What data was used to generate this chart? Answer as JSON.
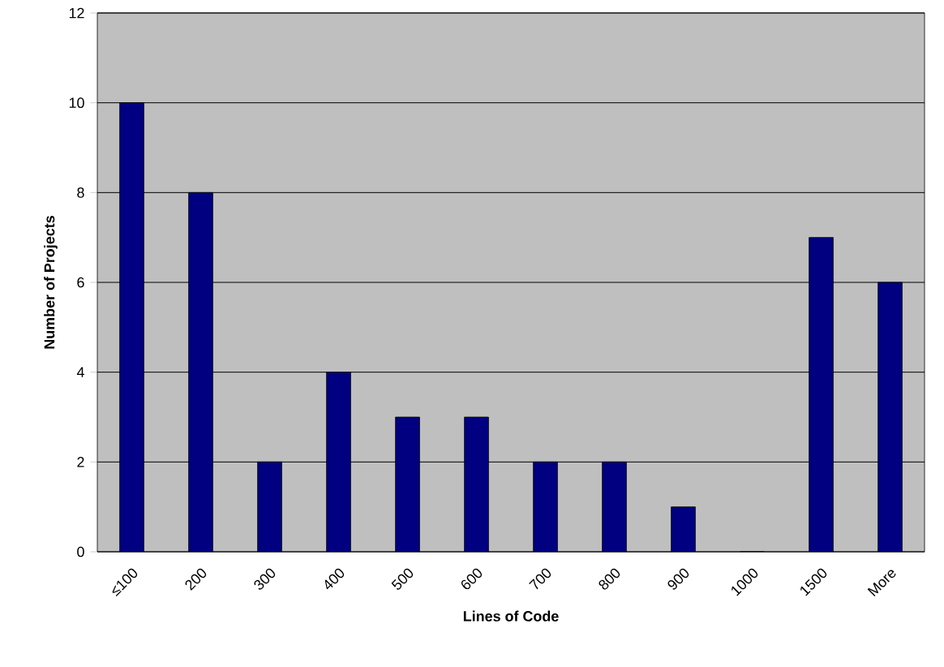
{
  "chart_data": {
    "type": "bar",
    "xlabel": "Lines of Code",
    "ylabel": "Number of Projects",
    "categories": [
      "≤100",
      "200",
      "300",
      "400",
      "500",
      "600",
      "700",
      "800",
      "900",
      "1000",
      "1500",
      "More"
    ],
    "values": [
      10,
      8,
      2,
      4,
      3,
      3,
      2,
      2,
      1,
      0,
      7,
      6
    ],
    "color": "#000080",
    "ylim": [
      0,
      12
    ],
    "yticks": [
      0,
      2,
      4,
      6,
      8,
      10,
      12
    ],
    "grid": "y"
  }
}
